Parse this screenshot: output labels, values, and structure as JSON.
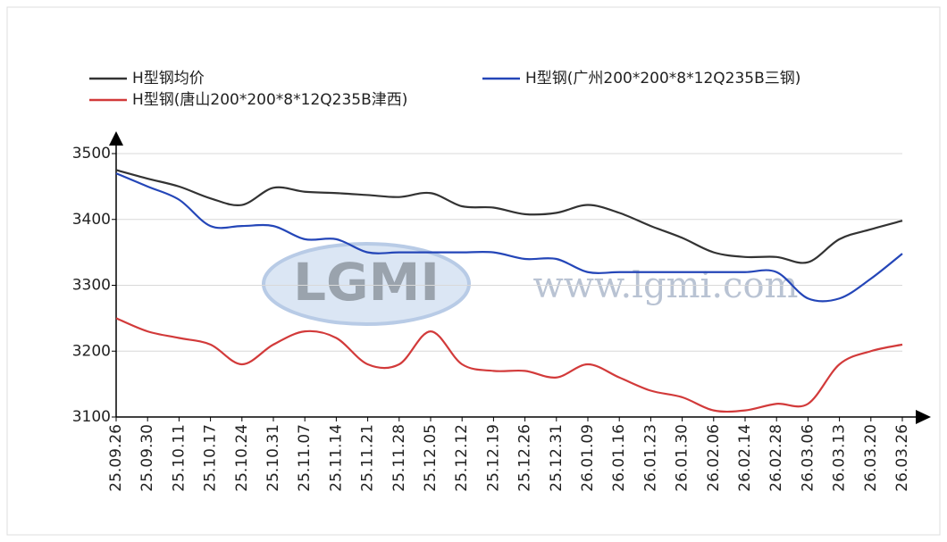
{
  "chart_data": {
    "type": "line",
    "categories": [
      "25.09.26",
      "25.09.30",
      "25.10.11",
      "25.10.17",
      "25.10.24",
      "25.10.31",
      "25.11.07",
      "25.11.14",
      "25.11.21",
      "25.11.28",
      "25.12.05",
      "25.12.12",
      "25.12.19",
      "25.12.26",
      "25.12.31",
      "26.01.09",
      "26.01.16",
      "26.01.23",
      "26.01.30",
      "26.02.06",
      "26.02.14",
      "26.02.28",
      "26.03.06",
      "26.03.13",
      "26.03.20",
      "26.03.26"
    ],
    "series": [
      {
        "name": "H型钢均价",
        "color": "#333333",
        "values": [
          3475,
          3462,
          3450,
          3432,
          3422,
          3448,
          3442,
          3440,
          3437,
          3434,
          3440,
          3420,
          3418,
          3408,
          3410,
          3422,
          3410,
          3390,
          3372,
          3350,
          3343,
          3343,
          3335,
          3370,
          3385,
          3398
        ]
      },
      {
        "name": "H型钢(广州200*200*8*12Q235B三钢)",
        "color": "#2446b8",
        "values": [
          3470,
          3450,
          3430,
          3390,
          3390,
          3390,
          3370,
          3370,
          3350,
          3350,
          3350,
          3350,
          3350,
          3340,
          3340,
          3320,
          3320,
          3320,
          3320,
          3320,
          3320,
          3320,
          3280,
          3280,
          3310,
          3348
        ]
      },
      {
        "name": "H型钢(唐山200*200*8*12Q235B津西)",
        "color": "#d23a3a",
        "values": [
          3250,
          3230,
          3220,
          3210,
          3180,
          3210,
          3230,
          3220,
          3180,
          3180,
          3230,
          3180,
          3170,
          3170,
          3160,
          3180,
          3160,
          3140,
          3130,
          3110,
          3110,
          3120,
          3120,
          3180,
          3200,
          3210
        ]
      }
    ],
    "ylim": [
      3100,
      3500
    ],
    "yticks": [
      3100,
      3200,
      3300,
      3400,
      3500
    ],
    "grid": true,
    "watermark": {
      "logo": "LGMI",
      "url": "www.lgmi.com"
    }
  }
}
